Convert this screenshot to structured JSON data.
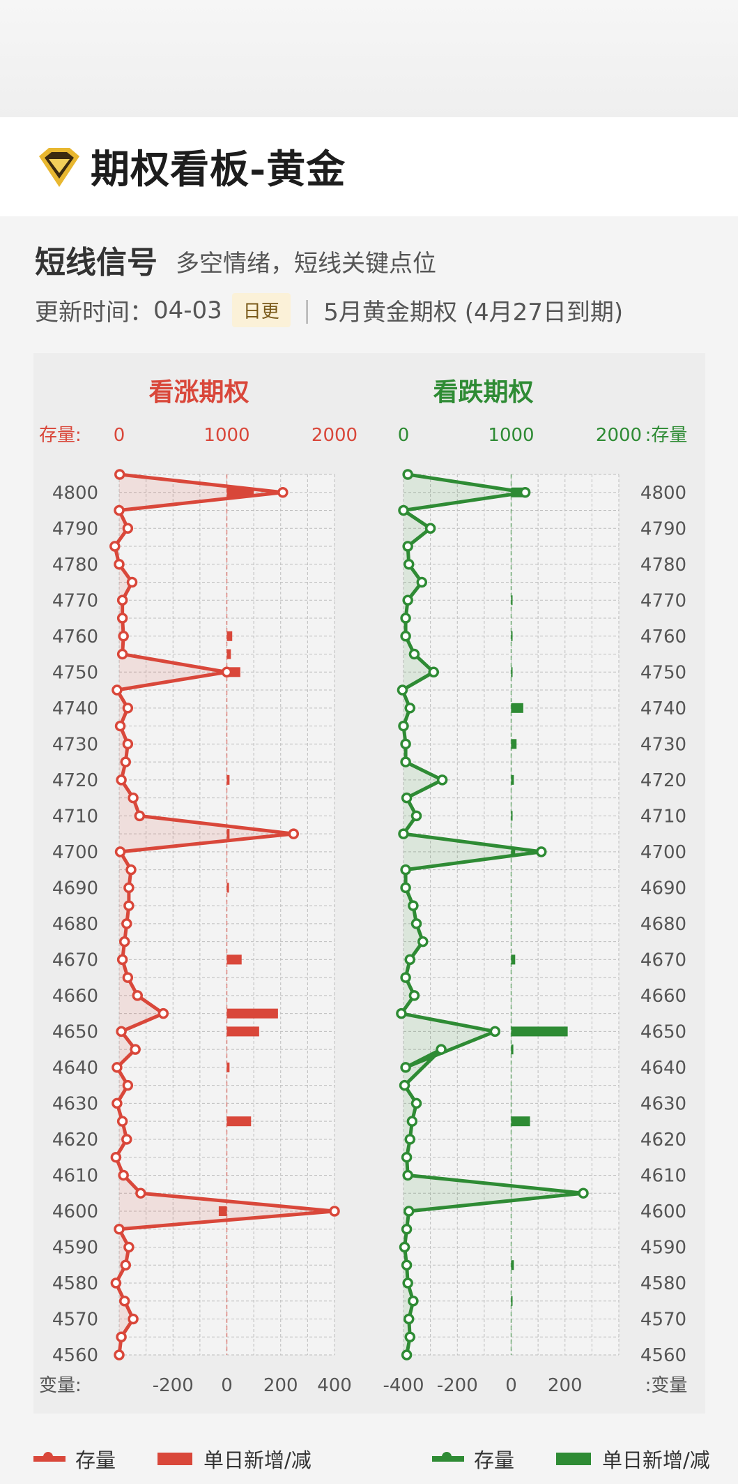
{
  "header": {
    "title": "期权看板-黄金"
  },
  "signal": {
    "title": "短线信号",
    "subtitle": "多空情绪，短线关键点位"
  },
  "update": {
    "label": "更新时间：",
    "date": "04-03",
    "badge": "日更",
    "contract": "5月黄金期权 (4月27日到期)"
  },
  "legend": {
    "left": {
      "line": "存量",
      "bar": "单日新增/减"
    },
    "right": {
      "line": "存量",
      "bar": "单日新增/减"
    }
  },
  "colors": {
    "call": "#d9473a",
    "put": "#2e8b34",
    "grid": "#bdbdbd",
    "text": "#555555"
  },
  "chart_data": [
    {
      "type": "line+bar",
      "title": "看涨期权",
      "top_axis_label": "存量:",
      "bottom_axis_label": "变量:",
      "oi_ticks": [
        0,
        1000,
        2000
      ],
      "change_ticks": [
        -200,
        0,
        200,
        400
      ],
      "oi_range": [
        0,
        2000
      ],
      "change_range": [
        -400,
        400
      ],
      "strikes": [
        4805,
        4800,
        4795,
        4790,
        4785,
        4780,
        4775,
        4770,
        4765,
        4760,
        4755,
        4750,
        4745,
        4740,
        4735,
        4730,
        4725,
        4720,
        4715,
        4710,
        4705,
        4700,
        4695,
        4690,
        4685,
        4680,
        4675,
        4670,
        4665,
        4660,
        4655,
        4650,
        4645,
        4640,
        4635,
        4630,
        4625,
        4620,
        4615,
        4610,
        4605,
        4600,
        4595,
        4590,
        4585,
        4580,
        4575,
        4570,
        4565,
        4560
      ],
      "strike_ticks": [
        4800,
        4790,
        4780,
        4770,
        4760,
        4750,
        4740,
        4730,
        4720,
        4710,
        4700,
        4690,
        4680,
        4670,
        4660,
        4650,
        4640,
        4630,
        4620,
        4610,
        4600,
        4590,
        4580,
        4570,
        4560
      ],
      "oi": [
        5,
        1520,
        0,
        80,
        -40,
        0,
        120,
        30,
        30,
        40,
        30,
        1000,
        -20,
        80,
        10,
        80,
        60,
        20,
        130,
        190,
        1620,
        10,
        110,
        90,
        90,
        70,
        50,
        30,
        80,
        170,
        410,
        20,
        150,
        -20,
        80,
        -20,
        30,
        70,
        -30,
        40,
        200,
        2000,
        0,
        90,
        60,
        -30,
        50,
        130,
        20,
        0
      ],
      "change": [
        0,
        100,
        0,
        0,
        0,
        0,
        0,
        0,
        0,
        20,
        15,
        50,
        0,
        0,
        0,
        0,
        0,
        10,
        0,
        0,
        10,
        0,
        0,
        8,
        0,
        0,
        0,
        55,
        0,
        0,
        190,
        120,
        0,
        10,
        0,
        0,
        90,
        0,
        0,
        0,
        0,
        -30,
        0,
        0,
        0,
        0,
        0,
        0,
        0,
        0
      ]
    },
    {
      "type": "line+bar",
      "title": "看跌期权",
      "top_axis_label": ":存量",
      "bottom_axis_label": ":变量",
      "oi_ticks": [
        0,
        1000,
        2000
      ],
      "change_ticks": [
        -400,
        -200,
        0,
        200
      ],
      "oi_range": [
        0,
        2000
      ],
      "change_range": [
        -400,
        400
      ],
      "strikes": [
        4805,
        4800,
        4795,
        4790,
        4785,
        4780,
        4775,
        4770,
        4765,
        4760,
        4755,
        4750,
        4745,
        4740,
        4735,
        4730,
        4725,
        4720,
        4715,
        4710,
        4705,
        4700,
        4695,
        4690,
        4685,
        4680,
        4675,
        4670,
        4665,
        4660,
        4655,
        4650,
        4640,
        4645,
        4635,
        4630,
        4625,
        4620,
        4615,
        4610,
        4605,
        4600,
        4595,
        4590,
        4585,
        4580,
        4575,
        4570,
        4565,
        4560
      ],
      "strike_ticks": [
        4800,
        4790,
        4780,
        4770,
        4760,
        4750,
        4740,
        4730,
        4720,
        4710,
        4700,
        4690,
        4680,
        4670,
        4660,
        4650,
        4640,
        4630,
        4620,
        4610,
        4600,
        4590,
        4580,
        4570,
        4560
      ],
      "oi": [
        40,
        1130,
        0,
        250,
        40,
        50,
        170,
        40,
        20,
        20,
        100,
        280,
        -10,
        60,
        0,
        20,
        20,
        360,
        30,
        120,
        0,
        1280,
        20,
        20,
        90,
        120,
        180,
        60,
        20,
        100,
        -20,
        850,
        20,
        350,
        10,
        120,
        80,
        60,
        30,
        40,
        1670,
        50,
        30,
        10,
        30,
        40,
        90,
        50,
        60,
        30
      ],
      "change": [
        0,
        50,
        0,
        0,
        0,
        0,
        0,
        3,
        0,
        5,
        0,
        5,
        0,
        45,
        0,
        20,
        0,
        10,
        0,
        5,
        0,
        15,
        0,
        0,
        0,
        0,
        0,
        15,
        0,
        0,
        0,
        210,
        0,
        8,
        0,
        0,
        70,
        0,
        0,
        0,
        0,
        0,
        0,
        0,
        10,
        0,
        5,
        0,
        0,
        0
      ]
    }
  ]
}
